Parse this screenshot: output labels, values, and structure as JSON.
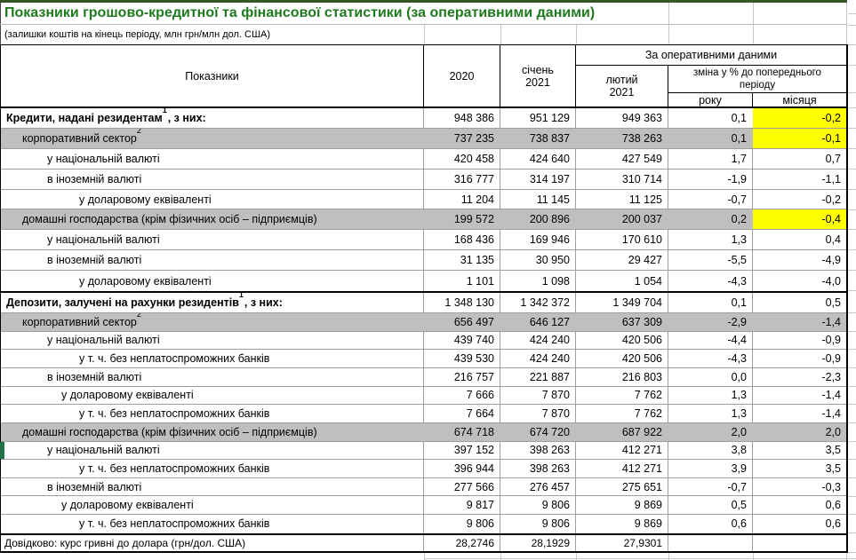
{
  "title": "Показники грошово-кредитної та фінансової статистики (за оперативними даними)",
  "subtitle": "(залишки коштів на кінець періоду, млн грн/млн дол. США)",
  "colors": {
    "title_green": "#1F7A1F",
    "dark_green_bar": "#375623",
    "highlight_yellow": "#FFFF00",
    "row_gray": "#BFBFBF",
    "marker_green": "#217346"
  },
  "table": {
    "header": {
      "indicators": "Показники",
      "col_2020": "2020",
      "col_jan_line1": "січень",
      "col_jan_line2": "2021",
      "operational_group": "За оперативними даними",
      "col_feb_line1": "лютий",
      "col_feb_line2": "2021",
      "change_label": "зміна у % до попереднього періоду",
      "change_year": "року",
      "change_month": "місяця"
    },
    "rows": [
      {
        "label": "Кредити, надані резидентам",
        "sup": "1",
        "suffix": ", з них:",
        "bold": true,
        "gray": false,
        "section": "credits",
        "indent": 0,
        "highlight_month": true,
        "marker": false,
        "values": [
          "948 386",
          "951 129",
          "949 363",
          "0,1",
          "-0,2"
        ]
      },
      {
        "label": "корпоративний сектор",
        "sup": "2",
        "suffix": "",
        "bold": false,
        "gray": true,
        "section": "credits",
        "indent": 1,
        "highlight_month": true,
        "marker": false,
        "values": [
          "737 235",
          "738 837",
          "738 263",
          "0,1",
          "-0,1"
        ]
      },
      {
        "label": "у національній валюті",
        "sup": null,
        "suffix": "",
        "bold": false,
        "gray": false,
        "section": "credits",
        "indent": 2,
        "highlight_month": false,
        "marker": false,
        "values": [
          "420 458",
          "424 640",
          "427 549",
          "1,7",
          "0,7"
        ]
      },
      {
        "label": "в іноземній валюті",
        "sup": null,
        "suffix": "",
        "bold": false,
        "gray": false,
        "section": "credits",
        "indent": 2,
        "highlight_month": false,
        "marker": false,
        "values": [
          "316 777",
          "314 197",
          "310 714",
          "-1,9",
          "-1,1"
        ]
      },
      {
        "label": "у доларовому еквіваленті",
        "sup": null,
        "suffix": "",
        "bold": false,
        "gray": false,
        "section": "credits",
        "indent": 4,
        "highlight_month": false,
        "marker": false,
        "values": [
          "11 204",
          "11 145",
          "11 125",
          "-0,7",
          "-0,2"
        ]
      },
      {
        "label": "домашні господарства (крім фізичних осіб – підприємців)",
        "sup": null,
        "suffix": "",
        "bold": false,
        "gray": true,
        "section": "credits",
        "indent": 1,
        "highlight_month": true,
        "marker": false,
        "values": [
          "199 572",
          "200 896",
          "200 037",
          "0,2",
          "-0,4"
        ]
      },
      {
        "label": "у національній валюті",
        "sup": null,
        "suffix": "",
        "bold": false,
        "gray": false,
        "section": "credits",
        "indent": 2,
        "highlight_month": false,
        "marker": false,
        "values": [
          "168 436",
          "169 946",
          "170 610",
          "1,3",
          "0,4"
        ]
      },
      {
        "label": "в іноземній валюті",
        "sup": null,
        "suffix": "",
        "bold": false,
        "gray": false,
        "section": "credits",
        "indent": 2,
        "highlight_month": false,
        "marker": false,
        "values": [
          "31 135",
          "30 950",
          "29 427",
          "-5,5",
          "-4,9"
        ]
      },
      {
        "label": "у доларовому еквіваленті",
        "sup": null,
        "suffix": "",
        "bold": false,
        "gray": false,
        "section": "credits",
        "indent": 4,
        "highlight_month": false,
        "marker": false,
        "values": [
          "1 101",
          "1 098",
          "1 054",
          "-4,3",
          "-4,0"
        ]
      },
      {
        "label": "Депозити, залучені на рахунки резидентів",
        "sup": "1",
        "suffix": ", з них:",
        "bold": true,
        "gray": false,
        "section": "deposits",
        "main": true,
        "separator": true,
        "indent": 0,
        "highlight_month": false,
        "marker": false,
        "values": [
          "1 348 130",
          "1 342 372",
          "1 349 704",
          "0,1",
          "0,5"
        ]
      },
      {
        "label": "корпоративний сектор",
        "sup": "2",
        "suffix": "",
        "bold": false,
        "gray": true,
        "section": "deposits",
        "indent": 1,
        "highlight_month": false,
        "marker": false,
        "values": [
          "656 497",
          "646 127",
          "637 309",
          "-2,9",
          "-1,4"
        ]
      },
      {
        "label": "у національній валюті",
        "sup": null,
        "suffix": "",
        "bold": false,
        "gray": false,
        "section": "deposits",
        "indent": 2,
        "highlight_month": false,
        "marker": false,
        "values": [
          "439 740",
          "424 240",
          "420 506",
          "-4,4",
          "-0,9"
        ]
      },
      {
        "label": "у т. ч. без неплатоспроможних банків",
        "sup": null,
        "suffix": "",
        "bold": false,
        "gray": false,
        "section": "deposits",
        "indent": 4,
        "highlight_month": false,
        "marker": false,
        "values": [
          "439 530",
          "424 240",
          "420 506",
          "-4,3",
          "-0,9"
        ]
      },
      {
        "label": "в іноземній валюті",
        "sup": null,
        "suffix": "",
        "bold": false,
        "gray": false,
        "section": "deposits",
        "indent": 2,
        "highlight_month": false,
        "marker": false,
        "values": [
          "216 757",
          "221 887",
          "216 803",
          "0,0",
          "-2,3"
        ]
      },
      {
        "label": "у доларовому еквіваленті",
        "sup": null,
        "suffix": "",
        "bold": false,
        "gray": false,
        "section": "deposits",
        "indent": 3,
        "highlight_month": false,
        "marker": false,
        "values": [
          "7 666",
          "7 870",
          "7 762",
          "1,3",
          "-1,4"
        ]
      },
      {
        "label": "у т. ч. без неплатоспроможних банків",
        "sup": null,
        "suffix": "",
        "bold": false,
        "gray": false,
        "section": "deposits",
        "indent": 4,
        "highlight_month": false,
        "marker": false,
        "values": [
          "7 664",
          "7 870",
          "7 762",
          "1,3",
          "-1,4"
        ]
      },
      {
        "label": "домашні господарства (крім фізичних осіб – підприємців)",
        "sup": null,
        "suffix": "",
        "bold": false,
        "gray": true,
        "section": "deposits",
        "indent": 1,
        "highlight_month": false,
        "marker": false,
        "values": [
          "674 718",
          "674 720",
          "687 922",
          "2,0",
          "2,0"
        ]
      },
      {
        "label": "у національній валюті",
        "sup": null,
        "suffix": "",
        "bold": false,
        "gray": false,
        "section": "deposits",
        "indent": 2,
        "highlight_month": false,
        "marker": true,
        "values": [
          "397 152",
          "398 263",
          "412 271",
          "3,8",
          "3,5"
        ]
      },
      {
        "label": "у т. ч. без неплатоспроможних банків",
        "sup": null,
        "suffix": "",
        "bold": false,
        "gray": false,
        "section": "deposits",
        "indent": 4,
        "highlight_month": false,
        "marker": false,
        "values": [
          "396 944",
          "398 263",
          "412 271",
          "3,9",
          "3,5"
        ]
      },
      {
        "label": "в іноземній валюті",
        "sup": null,
        "suffix": "",
        "bold": false,
        "gray": false,
        "section": "deposits",
        "indent": 2,
        "highlight_month": false,
        "marker": false,
        "values": [
          "277 566",
          "276 457",
          "275 651",
          "-0,7",
          "-0,3"
        ]
      },
      {
        "label": "у доларовому еквіваленті",
        "sup": null,
        "suffix": "",
        "bold": false,
        "gray": false,
        "section": "deposits",
        "indent": 3,
        "highlight_month": false,
        "marker": false,
        "values": [
          "9 817",
          "9 806",
          "9 869",
          "0,5",
          "0,6"
        ]
      },
      {
        "label": "у т. ч. без неплатоспроможних банків",
        "sup": null,
        "suffix": "",
        "bold": false,
        "gray": false,
        "section": "deposits",
        "indent": 4,
        "highlight_month": false,
        "marker": false,
        "values": [
          "9 806",
          "9 806",
          "9 869",
          "0,6",
          "0,6"
        ]
      }
    ],
    "footer": {
      "label": "Довідково: курс гривні до долара (грн/дол. США)",
      "values": [
        "28,2746",
        "28,1929",
        "27,9301",
        "",
        ""
      ]
    }
  }
}
